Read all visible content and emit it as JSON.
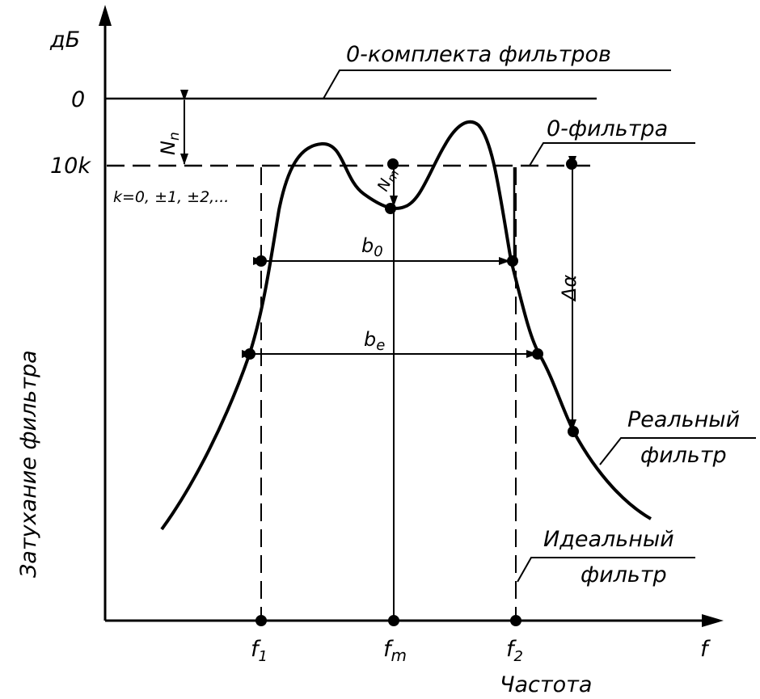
{
  "y_axis": {
    "unit": "дБ",
    "title": "Затухание фильтра",
    "tick_zero": "0",
    "tick_10k": "10k"
  },
  "x_axis": {
    "title": "Частота",
    "symbol": "f",
    "f1": "f",
    "f1_sub": "1",
    "fm": "f",
    "fm_sub": "m",
    "f2": "f",
    "f2_sub": "2"
  },
  "labels": {
    "zero_filter_set": "0-комплекта фильтров",
    "zero_filter": "0-фильтра",
    "k_values": "k=0, ±1, ±2,...",
    "n_n": "N",
    "n_n_sub": "n",
    "n_m": "N",
    "n_m_sub": "m",
    "b0": "b",
    "b0_sub": "0",
    "be": "b",
    "be_sub": "e",
    "delta_alpha": "Δα",
    "real_filter_line1": "Реальный",
    "real_filter_line2": "фильтр",
    "ideal_filter_line1": "Идеальный",
    "ideal_filter_line2": "фильтр"
  }
}
